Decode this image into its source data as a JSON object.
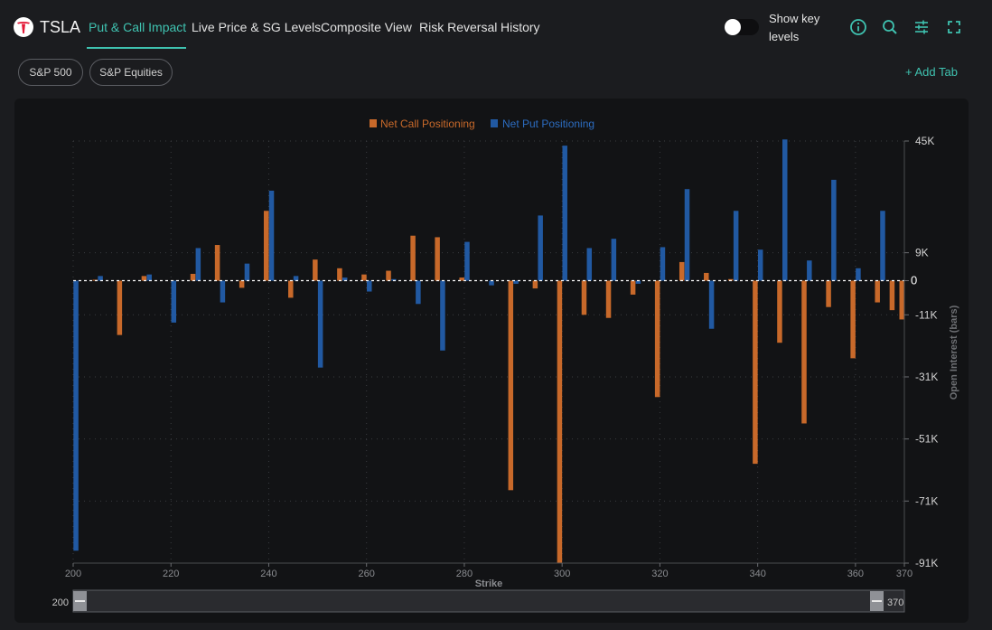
{
  "header": {
    "ticker": "TSLA",
    "logo": "tesla-logo",
    "tabs": [
      {
        "label": "Put & Call Impact",
        "active": true
      },
      {
        "label": "Live Price & SG Levels",
        "active": false
      },
      {
        "label": "Composite View",
        "active": false
      },
      {
        "label": "Risk Reversal",
        "active": false
      },
      {
        "label": "History",
        "active": false
      }
    ],
    "toggle_label": "Show key levels",
    "toggle_on": false,
    "icons": [
      "info-icon",
      "search-icon",
      "sliders-icon",
      "fullscreen-icon"
    ],
    "accent_color": "#3fc2b0"
  },
  "subtabs": {
    "pills": [
      "S&P 500",
      "S&P Equities"
    ],
    "add_tab": "+ Add Tab"
  },
  "chart_data": {
    "type": "bar",
    "legend": [
      "Net Call Positioning",
      "Net Put Positioning"
    ],
    "legend_position": "top-center",
    "xlabel": "Strike",
    "ylabel": "Open Interest (bars)",
    "xlim": [
      200,
      370
    ],
    "ylim": [
      -91000,
      45000
    ],
    "yticks": [
      45000,
      9000,
      0,
      -11000,
      -31000,
      -51000,
      -71000,
      -91000
    ],
    "ytick_labels": [
      "45K",
      "9K",
      "0",
      "-11K",
      "-31K",
      "-51K",
      "-71K",
      "-91K"
    ],
    "xticks": [
      200,
      220,
      240,
      260,
      280,
      300,
      320,
      340,
      360,
      370
    ],
    "grid": true,
    "colors": {
      "call": "#c8692a",
      "put": "#2159a2"
    },
    "series": [
      {
        "name": "Net Call Positioning",
        "points": [
          [
            205,
            300
          ],
          [
            210,
            -17500
          ],
          [
            215,
            1500
          ],
          [
            225,
            2200
          ],
          [
            230,
            11500
          ],
          [
            235,
            -2300
          ],
          [
            240,
            22500
          ],
          [
            245,
            -5500
          ],
          [
            250,
            6800
          ],
          [
            255,
            4000
          ],
          [
            260,
            2000
          ],
          [
            265,
            3200
          ],
          [
            270,
            14500
          ],
          [
            275,
            14000
          ],
          [
            280,
            1000
          ],
          [
            290,
            -67500
          ],
          [
            295,
            -2500
          ],
          [
            300,
            -91000
          ],
          [
            305,
            -11000
          ],
          [
            310,
            -12000
          ],
          [
            315,
            -4500
          ],
          [
            320,
            -37500
          ],
          [
            325,
            6000
          ],
          [
            330,
            2500
          ],
          [
            335,
            500
          ],
          [
            340,
            -59000
          ],
          [
            345,
            -20000
          ],
          [
            350,
            -46000
          ],
          [
            355,
            -8500
          ],
          [
            360,
            -25000
          ],
          [
            365,
            -7000
          ],
          [
            368,
            -9500
          ],
          [
            370,
            -12500
          ]
        ]
      },
      {
        "name": "Net Put Positioning",
        "points": [
          [
            200,
            -87000
          ],
          [
            205,
            1500
          ],
          [
            215,
            2000
          ],
          [
            220,
            -13500
          ],
          [
            225,
            10500
          ],
          [
            230,
            -7000
          ],
          [
            235,
            5500
          ],
          [
            240,
            29000
          ],
          [
            245,
            1500
          ],
          [
            250,
            -28000
          ],
          [
            255,
            1000
          ],
          [
            260,
            -3500
          ],
          [
            265,
            500
          ],
          [
            270,
            -7500
          ],
          [
            275,
            -22500
          ],
          [
            280,
            12500
          ],
          [
            285,
            -1500
          ],
          [
            290,
            -1000
          ],
          [
            295,
            21000
          ],
          [
            300,
            43500
          ],
          [
            305,
            10500
          ],
          [
            310,
            13500
          ],
          [
            315,
            -1000
          ],
          [
            320,
            10800
          ],
          [
            325,
            29500
          ],
          [
            330,
            -15500
          ],
          [
            335,
            22500
          ],
          [
            340,
            10000
          ],
          [
            345,
            45500
          ],
          [
            350,
            6500
          ],
          [
            355,
            32500
          ],
          [
            360,
            4000
          ],
          [
            365,
            22500
          ]
        ]
      }
    ]
  },
  "range_slider": {
    "min_label": "200",
    "max_label": "370"
  }
}
